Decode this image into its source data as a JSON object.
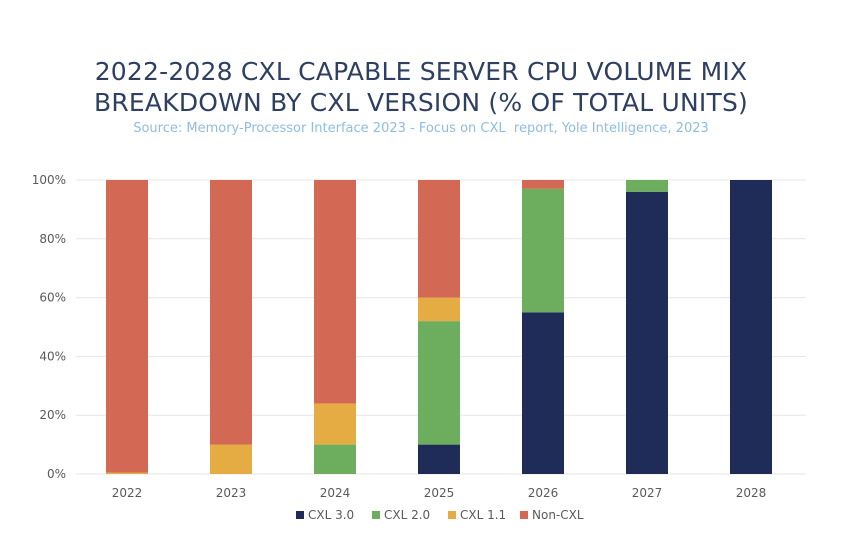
{
  "title_line1": "2022-2028 CXL CAPABLE SERVER CPU VOLUME MIX",
  "title_line2": "BREAKDOWN BY CXL VERSION (% OF TOTAL UNITS)",
  "source": "Source: Memory-Processor Interface 2023 - Focus on CXL  report, Yole Intelligence, 2023",
  "colors": {
    "CXL 3.0": "#1e2c57",
    "CXL 2.0": "#6cae5e",
    "CXL 1.1": "#e6ac44",
    "Non-CXL": "#d36955",
    "grid": "#e6e6e6",
    "text": "#5a5a5a"
  },
  "chart_data": {
    "type": "bar",
    "stacked": true,
    "categories": [
      "2022",
      "2023",
      "2024",
      "2025",
      "2026",
      "2027",
      "2028"
    ],
    "series": [
      {
        "name": "CXL 3.0",
        "values": [
          0,
          0,
          0,
          10,
          55,
          96,
          100
        ]
      },
      {
        "name": "CXL 2.0",
        "values": [
          0,
          0,
          10,
          42,
          42,
          4,
          0
        ]
      },
      {
        "name": "CXL 1.1",
        "values": [
          0.5,
          10,
          14,
          8,
          0,
          0,
          0
        ]
      },
      {
        "name": "Non-CXL",
        "values": [
          99.5,
          90,
          76,
          40,
          3,
          0,
          0
        ]
      }
    ],
    "ylim": [
      0,
      100
    ],
    "yticks": [
      "0%",
      "20%",
      "40%",
      "60%",
      "80%",
      "100%"
    ],
    "grid": true,
    "legend": "bottom"
  }
}
